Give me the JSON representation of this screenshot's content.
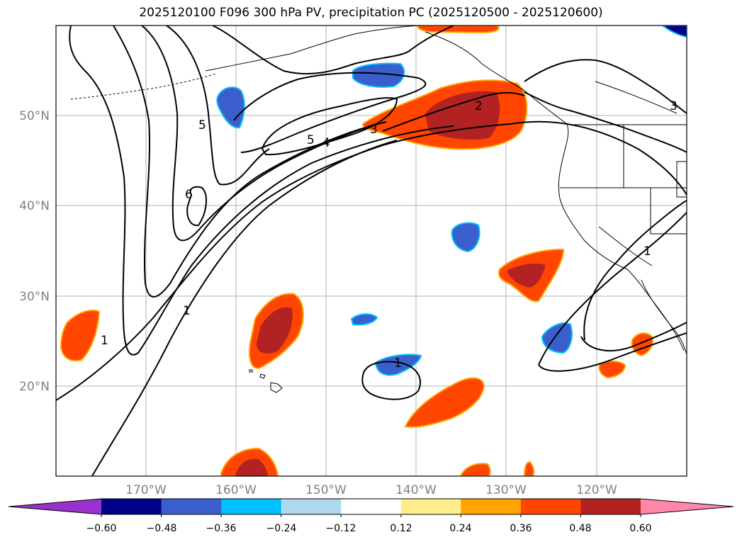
{
  "title": "2025120100 F096 300 hPa PV, precipitation PC (2025120500 - 2025120600)",
  "map": {
    "lon_labels": [
      "170°W",
      "160°W",
      "150°W",
      "140°W",
      "130°W",
      "120°W"
    ],
    "lat_labels": [
      "50°N",
      "40°N",
      "30°N",
      "20°N"
    ],
    "contour_labels": [
      "5",
      "6",
      "5",
      "4",
      "3",
      "2",
      "1",
      "1",
      "1",
      "3",
      "1"
    ]
  },
  "colorbar": {
    "ticks": [
      "−0.60",
      "−0.48",
      "−0.36",
      "−0.24",
      "−0.12",
      "0.12",
      "0.24",
      "0.36",
      "0.48",
      "0.60"
    ],
    "colors": [
      "#9932cc",
      "#00008b",
      "#3a5fcd",
      "#00bfff",
      "#add8f0",
      "#ffffff",
      "#ffec8b",
      "#ffa500",
      "#ff4500",
      "#b22222",
      "#ff88aa"
    ]
  }
}
